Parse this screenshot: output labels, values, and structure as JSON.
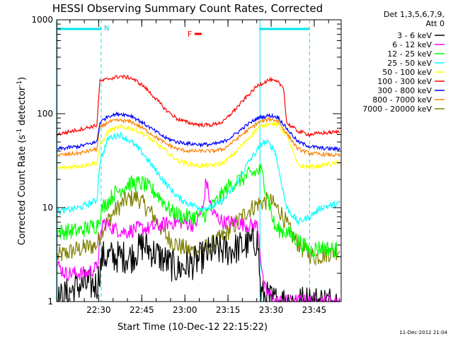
{
  "chart_data": {
    "type": "line",
    "title": "HESSI Observing Summary Count Rates, Corrected",
    "xlabel": "Start Time (10-Dec-12 22:15:22)",
    "ylabel": "Corrected Count Rate (s",
    "ylabel_exp1": "-1",
    "ylabel_mid": " detector",
    "ylabel_exp2": "-1",
    "ylabel_close": ")",
    "x_tick_labels": [
      "22:30",
      "22:45",
      "23:00",
      "23:15",
      "23:30",
      "23:45"
    ],
    "x_tick_minutes": [
      14.63,
      29.63,
      44.63,
      59.63,
      74.63,
      89.63
    ],
    "xlim_minutes": [
      0,
      99
    ],
    "y_scale": "log",
    "ylim": [
      1,
      1000
    ],
    "y_tick_labels": [
      "1",
      "10",
      "100",
      "1000"
    ],
    "legend_header": [
      "Det 1,3,5,6,7,9,",
      "Att 0"
    ],
    "legend_position": "right",
    "timestamp": "11-Dec-2012 21:04",
    "markers": {
      "night_label": "N",
      "flare_label": "F",
      "night_bars": [
        [
          0,
          15.5
        ],
        [
          70.5,
          88
        ]
      ],
      "saa_lines": [
        15.5,
        88
      ],
      "night_edges": [
        0,
        70.5
      ],
      "flare_bar": [
        48,
        50.5
      ]
    },
    "series": [
      {
        "name": "3 - 6 keV",
        "color": "#000000",
        "x": [
          0,
          8,
          14,
          16,
          26,
          30,
          36,
          42,
          48,
          54,
          60,
          66,
          70,
          71,
          76,
          80,
          84,
          88,
          92,
          98
        ],
        "y": [
          1,
          1.5,
          1.5,
          3,
          3,
          4,
          3,
          2.2,
          2.6,
          3.5,
          3.5,
          4,
          4.5,
          1.2,
          1,
          1,
          1,
          1,
          1,
          1
        ]
      },
      {
        "name": "6 - 12 keV",
        "color": "#ff00ff",
        "x": [
          0,
          3,
          10,
          14,
          16,
          20,
          24,
          28,
          32,
          36,
          40,
          44,
          48,
          51,
          52,
          54,
          58,
          62,
          66,
          70,
          72,
          76,
          80,
          84,
          88,
          98
        ],
        "y": [
          2.5,
          2,
          2,
          2.3,
          7,
          6,
          5.5,
          6,
          6,
          6.5,
          7,
          7,
          6.5,
          10,
          20,
          9,
          7,
          7,
          6.5,
          6.5,
          1.4,
          1,
          1,
          1,
          1,
          1
        ]
      },
      {
        "name": "12 - 25 keV",
        "color": "#00ff00",
        "x": [
          0,
          8,
          14,
          16,
          20,
          25,
          30,
          35,
          40,
          44,
          48,
          52,
          56,
          60,
          64,
          68,
          71,
          72,
          76,
          80,
          84,
          88,
          92,
          98
        ],
        "y": [
          5.5,
          5.7,
          6.5,
          10,
          14,
          18,
          18,
          14,
          9,
          8,
          8,
          8.5,
          12,
          17,
          20,
          23,
          25,
          20,
          6,
          5.5,
          4.5,
          3.5,
          3.8,
          3.5
        ]
      },
      {
        "name": "25 - 50 keV",
        "color": "#00ffff",
        "x": [
          0,
          8,
          14,
          15,
          18,
          22,
          26,
          30,
          34,
          38,
          42,
          46,
          50,
          54,
          58,
          62,
          66,
          70,
          72,
          74,
          76,
          80,
          84,
          88,
          92,
          98
        ],
        "y": [
          9,
          10,
          12,
          30,
          55,
          60,
          50,
          38,
          26,
          18,
          13,
          11,
          10,
          10,
          12,
          17,
          28,
          42,
          50,
          48,
          40,
          10,
          7,
          8,
          10,
          11
        ]
      },
      {
        "name": "50 - 100 keV",
        "color": "#ffff00",
        "x": [
          0,
          8,
          14,
          15,
          18,
          22,
          26,
          30,
          34,
          38,
          42,
          46,
          50,
          54,
          58,
          62,
          66,
          70,
          74,
          77,
          80,
          84,
          88,
          92,
          98
        ],
        "y": [
          26,
          28,
          30,
          45,
          65,
          72,
          70,
          62,
          50,
          40,
          32,
          29,
          28,
          28,
          30,
          38,
          52,
          70,
          80,
          76,
          60,
          28,
          27,
          28,
          30
        ]
      },
      {
        "name": "100 - 300 keV",
        "color": "#ff0000",
        "x": [
          0,
          8,
          14,
          15,
          18,
          22,
          26,
          30,
          34,
          38,
          42,
          46,
          50,
          54,
          58,
          62,
          66,
          70,
          74,
          77,
          79,
          80,
          84,
          88,
          92,
          98
        ],
        "y": [
          60,
          68,
          75,
          220,
          235,
          250,
          240,
          200,
          150,
          110,
          88,
          80,
          76,
          76,
          82,
          110,
          150,
          200,
          230,
          215,
          190,
          80,
          65,
          60,
          62,
          64
        ]
      },
      {
        "name": "300 - 800 keV",
        "color": "#0000ff",
        "x": [
          0,
          8,
          14,
          15,
          18,
          22,
          26,
          30,
          34,
          38,
          42,
          46,
          50,
          54,
          58,
          62,
          66,
          70,
          74,
          77,
          80,
          84,
          88,
          92,
          98
        ],
        "y": [
          42,
          45,
          50,
          80,
          95,
          100,
          95,
          80,
          66,
          55,
          50,
          48,
          47,
          47,
          50,
          60,
          75,
          90,
          96,
          92,
          70,
          50,
          45,
          43,
          42
        ]
      },
      {
        "name": "800 - 7000 keV",
        "color": "#ff8000",
        "x": [
          0,
          8,
          14,
          15,
          18,
          22,
          26,
          30,
          34,
          38,
          42,
          46,
          50,
          54,
          58,
          62,
          66,
          70,
          74,
          77,
          80,
          84,
          88,
          92,
          98
        ],
        "y": [
          36,
          38,
          42,
          70,
          82,
          85,
          82,
          70,
          58,
          48,
          42,
          40,
          40,
          40,
          42,
          52,
          65,
          80,
          88,
          84,
          62,
          42,
          38,
          37,
          36
        ]
      },
      {
        "name": "7000 - 20000 keV",
        "color": "#808000",
        "x": [
          0,
          6,
          14,
          16,
          20,
          24,
          28,
          30,
          34,
          38,
          42,
          46,
          50,
          54,
          58,
          62,
          66,
          70,
          74,
          78,
          82,
          86,
          90,
          98
        ],
        "y": [
          3,
          3.5,
          4,
          6,
          9,
          12,
          13,
          11,
          8,
          5,
          4,
          3.5,
          3.5,
          4,
          5,
          6.5,
          9,
          11,
          12,
          9,
          5,
          3.5,
          3,
          3.5
        ]
      }
    ]
  }
}
